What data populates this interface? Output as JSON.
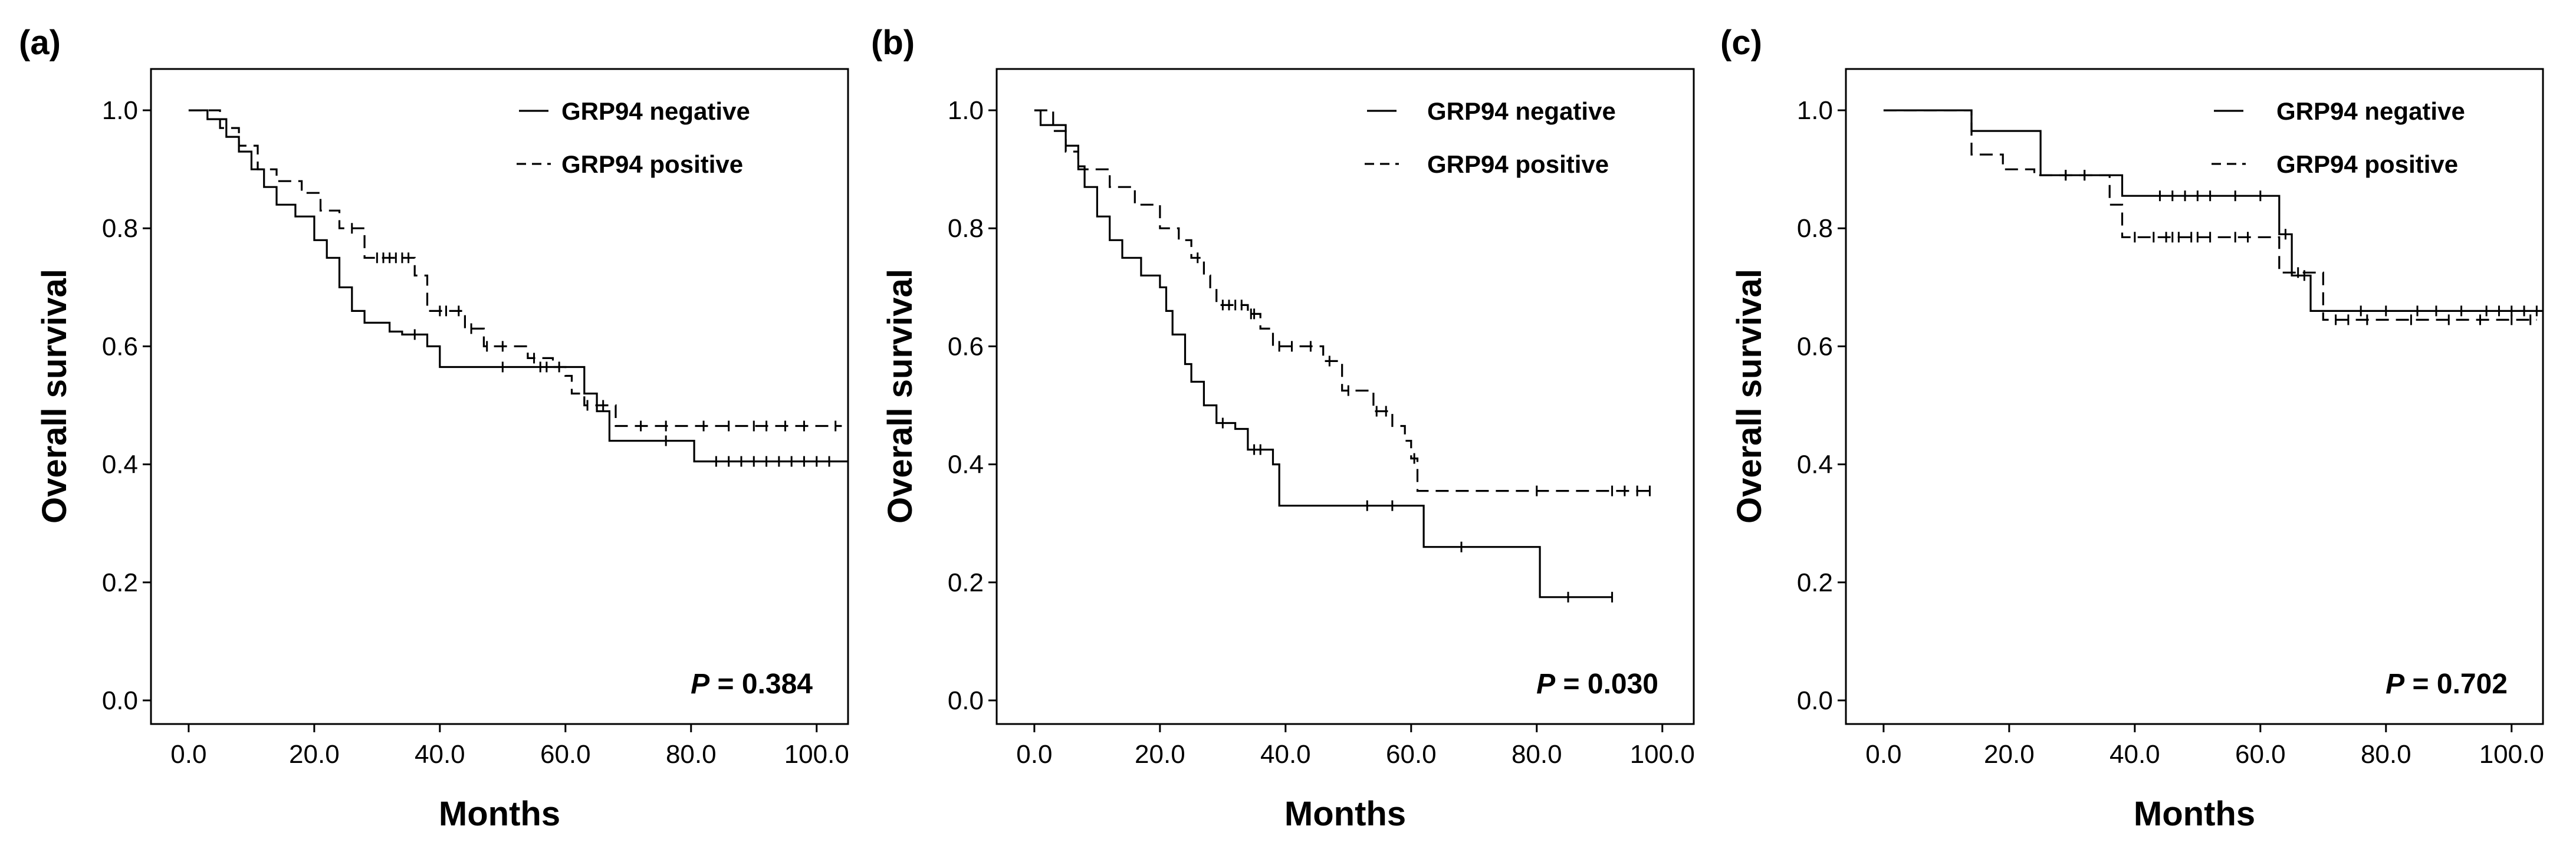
{
  "chart_data": [
    {
      "type": "line",
      "panel_label": "(a)",
      "xlabel": "Months",
      "ylabel": "Overall survival",
      "xlim": [
        -6,
        105
      ],
      "ylim": [
        -0.04,
        1.07
      ],
      "x_ticks": [
        0,
        20,
        40,
        60,
        80,
        100
      ],
      "x_tick_labels": [
        "0.0",
        "20.0",
        "40.0",
        "60.0",
        "80.0",
        "100.0"
      ],
      "y_ticks": [
        0,
        0.2,
        0.4,
        0.6,
        0.8,
        1.0
      ],
      "y_tick_labels": [
        "0.0",
        "0.2",
        "0.4",
        "0.6",
        "0.8",
        "1.0"
      ],
      "legend_position": "top-right",
      "p_label": "P",
      "p_value": "= 0.384",
      "series": [
        {
          "name": "GRP94 negative",
          "style": "solid",
          "steps": [
            [
              0,
              1.0
            ],
            [
              3,
              0.985
            ],
            [
              6,
              0.955
            ],
            [
              8,
              0.93
            ],
            [
              10,
              0.9
            ],
            [
              12,
              0.87
            ],
            [
              14,
              0.84
            ],
            [
              17,
              0.82
            ],
            [
              20,
              0.78
            ],
            [
              22,
              0.75
            ],
            [
              24,
              0.7
            ],
            [
              26,
              0.66
            ],
            [
              28,
              0.64
            ],
            [
              32,
              0.625
            ],
            [
              34,
              0.62
            ],
            [
              38,
              0.6
            ],
            [
              40,
              0.565
            ],
            [
              60,
              0.565
            ],
            [
              63,
              0.52
            ],
            [
              65,
              0.49
            ],
            [
              67,
              0.44
            ],
            [
              80,
              0.44
            ],
            [
              80.5,
              0.405
            ],
            [
              105,
              0.405
            ]
          ],
          "censored": [
            [
              36,
              0.62
            ],
            [
              50,
              0.565
            ],
            [
              56,
              0.565
            ],
            [
              76,
              0.44
            ],
            [
              84,
              0.405
            ],
            [
              86,
              0.405
            ],
            [
              88,
              0.405
            ],
            [
              90,
              0.405
            ],
            [
              92,
              0.405
            ],
            [
              94,
              0.405
            ],
            [
              96,
              0.405
            ],
            [
              98,
              0.405
            ],
            [
              100,
              0.405
            ],
            [
              102,
              0.405
            ]
          ]
        },
        {
          "name": "GRP94 positive",
          "style": "dashed",
          "steps": [
            [
              0,
              1.0
            ],
            [
              5,
              0.97
            ],
            [
              8,
              0.94
            ],
            [
              11,
              0.9
            ],
            [
              14,
              0.88
            ],
            [
              18,
              0.86
            ],
            [
              21,
              0.83
            ],
            [
              24,
              0.8
            ],
            [
              28,
              0.75
            ],
            [
              36,
              0.72
            ],
            [
              38,
              0.66
            ],
            [
              44,
              0.63
            ],
            [
              47,
              0.6
            ],
            [
              54,
              0.58
            ],
            [
              58,
              0.565
            ],
            [
              60,
              0.55
            ],
            [
              61,
              0.52
            ],
            [
              63,
              0.5
            ],
            [
              68,
              0.465
            ],
            [
              104,
              0.465
            ]
          ],
          "censored": [
            [
              26,
              0.8
            ],
            [
              30,
              0.75
            ],
            [
              31,
              0.75
            ],
            [
              32,
              0.75
            ],
            [
              33,
              0.75
            ],
            [
              34,
              0.75
            ],
            [
              35,
              0.75
            ],
            [
              40,
              0.66
            ],
            [
              41,
              0.66
            ],
            [
              43,
              0.66
            ],
            [
              45,
              0.63
            ],
            [
              47.5,
              0.6
            ],
            [
              50,
              0.6
            ],
            [
              55,
              0.58
            ],
            [
              57,
              0.565
            ],
            [
              59,
              0.565
            ],
            [
              63.5,
              0.5
            ],
            [
              66,
              0.5
            ],
            [
              72,
              0.465
            ],
            [
              76,
              0.465
            ],
            [
              82,
              0.465
            ],
            [
              86,
              0.465
            ],
            [
              90,
              0.465
            ],
            [
              92,
              0.465
            ],
            [
              95,
              0.465
            ],
            [
              98,
              0.465
            ],
            [
              103,
              0.465
            ]
          ]
        }
      ]
    },
    {
      "type": "line",
      "panel_label": "(b)",
      "xlabel": "Months",
      "ylabel": "Overall survival",
      "xlim": [
        -6,
        105
      ],
      "ylim": [
        -0.04,
        1.07
      ],
      "x_ticks": [
        0,
        20,
        40,
        60,
        80,
        100
      ],
      "x_tick_labels": [
        "0.0",
        "20.0",
        "40.0",
        "60.0",
        "80.0",
        "100.0"
      ],
      "y_ticks": [
        0,
        0.2,
        0.4,
        0.6,
        0.8,
        1.0
      ],
      "y_tick_labels": [
        "0.0",
        "0.2",
        "0.4",
        "0.6",
        "0.8",
        "1.0"
      ],
      "legend_position": "top-right",
      "p_label": "P",
      "p_value": "= 0.030",
      "series": [
        {
          "name": "GRP94 negative",
          "style": "solid",
          "steps": [
            [
              0,
              1.0
            ],
            [
              1,
              0.975
            ],
            [
              5,
              0.94
            ],
            [
              7,
              0.905
            ],
            [
              8,
              0.87
            ],
            [
              10,
              0.82
            ],
            [
              12,
              0.78
            ],
            [
              14,
              0.75
            ],
            [
              17,
              0.72
            ],
            [
              20,
              0.7
            ],
            [
              21,
              0.66
            ],
            [
              22,
              0.62
            ],
            [
              24,
              0.57
            ],
            [
              25,
              0.54
            ],
            [
              27,
              0.5
            ],
            [
              29,
              0.47
            ],
            [
              32,
              0.46
            ],
            [
              34,
              0.425
            ],
            [
              38,
              0.4
            ],
            [
              39,
              0.33
            ],
            [
              60,
              0.33
            ],
            [
              62,
              0.26
            ],
            [
              80,
              0.26
            ],
            [
              80.5,
              0.175
            ],
            [
              92,
              0.175
            ]
          ],
          "censored": [
            [
              30,
              0.47
            ],
            [
              35,
              0.425
            ],
            [
              36,
              0.425
            ],
            [
              53,
              0.33
            ],
            [
              57,
              0.33
            ],
            [
              68,
              0.26
            ],
            [
              85,
              0.175
            ],
            [
              92,
              0.175
            ]
          ]
        },
        {
          "name": "GRP94 positive",
          "style": "dashed",
          "steps": [
            [
              0,
              1.0
            ],
            [
              3,
              0.965
            ],
            [
              5,
              0.93
            ],
            [
              7,
              0.9
            ],
            [
              12,
              0.87
            ],
            [
              16,
              0.84
            ],
            [
              20,
              0.8
            ],
            [
              23,
              0.78
            ],
            [
              25,
              0.75
            ],
            [
              27,
              0.72
            ],
            [
              28,
              0.7
            ],
            [
              29,
              0.67
            ],
            [
              34,
              0.655
            ],
            [
              36,
              0.63
            ],
            [
              38,
              0.6
            ],
            [
              46,
              0.575
            ],
            [
              49,
              0.525
            ],
            [
              54,
              0.49
            ],
            [
              57,
              0.465
            ],
            [
              59,
              0.44
            ],
            [
              60,
              0.41
            ],
            [
              61,
              0.355
            ],
            [
              98,
              0.355
            ]
          ],
          "censored": [
            [
              26,
              0.75
            ],
            [
              30,
              0.67
            ],
            [
              31,
              0.67
            ],
            [
              32,
              0.67
            ],
            [
              33,
              0.67
            ],
            [
              34.5,
              0.655
            ],
            [
              35,
              0.655
            ],
            [
              39,
              0.6
            ],
            [
              41,
              0.6
            ],
            [
              44,
              0.6
            ],
            [
              47,
              0.575
            ],
            [
              50,
              0.525
            ],
            [
              54.5,
              0.49
            ],
            [
              56,
              0.49
            ],
            [
              60.5,
              0.41
            ],
            [
              80,
              0.355
            ],
            [
              92,
              0.355
            ],
            [
              94,
              0.355
            ],
            [
              96,
              0.355
            ],
            [
              98,
              0.355
            ]
          ]
        }
      ]
    },
    {
      "type": "line",
      "panel_label": "(c)",
      "xlabel": "Months",
      "ylabel": "Overall survival",
      "xlim": [
        -6,
        105
      ],
      "ylim": [
        -0.04,
        1.07
      ],
      "x_ticks": [
        0,
        20,
        40,
        60,
        80,
        100
      ],
      "x_tick_labels": [
        "0.0",
        "20.0",
        "40.0",
        "60.0",
        "80.0",
        "100.0"
      ],
      "y_ticks": [
        0,
        0.2,
        0.4,
        0.6,
        0.8,
        1.0
      ],
      "y_tick_labels": [
        "0.0",
        "0.2",
        "0.4",
        "0.6",
        "0.8",
        "1.0"
      ],
      "legend_position": "top-right",
      "p_label": "P",
      "p_value": "= 0.702",
      "series": [
        {
          "name": "GRP94 negative",
          "style": "solid",
          "steps": [
            [
              0,
              1.0
            ],
            [
              14,
              0.965
            ],
            [
              25,
              0.89
            ],
            [
              38,
              0.855
            ],
            [
              63,
              0.79
            ],
            [
              65,
              0.72
            ],
            [
              68,
              0.66
            ],
            [
              105,
              0.66
            ]
          ],
          "censored": [
            [
              29,
              0.89
            ],
            [
              32,
              0.89
            ],
            [
              44,
              0.855
            ],
            [
              46,
              0.855
            ],
            [
              48,
              0.855
            ],
            [
              50,
              0.855
            ],
            [
              52,
              0.855
            ],
            [
              56,
              0.855
            ],
            [
              60,
              0.855
            ],
            [
              64,
              0.79
            ],
            [
              67,
              0.72
            ],
            [
              76,
              0.66
            ],
            [
              80,
              0.66
            ],
            [
              85,
              0.66
            ],
            [
              88,
              0.66
            ],
            [
              92,
              0.66
            ],
            [
              96,
              0.66
            ],
            [
              98,
              0.66
            ],
            [
              100,
              0.66
            ],
            [
              102,
              0.66
            ],
            [
              104,
              0.66
            ]
          ]
        },
        {
          "name": "GRP94 positive",
          "style": "dashed",
          "steps": [
            [
              0,
              1.0
            ],
            [
              14,
              0.925
            ],
            [
              19,
              0.9
            ],
            [
              24,
              0.89
            ],
            [
              36,
              0.84
            ],
            [
              38,
              0.785
            ],
            [
              63,
              0.725
            ],
            [
              70,
              0.645
            ],
            [
              104,
              0.645
            ]
          ],
          "censored": [
            [
              29,
              0.89
            ],
            [
              32,
              0.89
            ],
            [
              40,
              0.785
            ],
            [
              43,
              0.785
            ],
            [
              45,
              0.785
            ],
            [
              46,
              0.785
            ],
            [
              47,
              0.785
            ],
            [
              49,
              0.785
            ],
            [
              50,
              0.785
            ],
            [
              52,
              0.785
            ],
            [
              56,
              0.785
            ],
            [
              58,
              0.785
            ],
            [
              66,
              0.725
            ],
            [
              72,
              0.645
            ],
            [
              74,
              0.645
            ],
            [
              77,
              0.645
            ],
            [
              84,
              0.645
            ],
            [
              90,
              0.645
            ],
            [
              95,
              0.645
            ],
            [
              100,
              0.645
            ],
            [
              103,
              0.645
            ]
          ]
        }
      ]
    }
  ]
}
